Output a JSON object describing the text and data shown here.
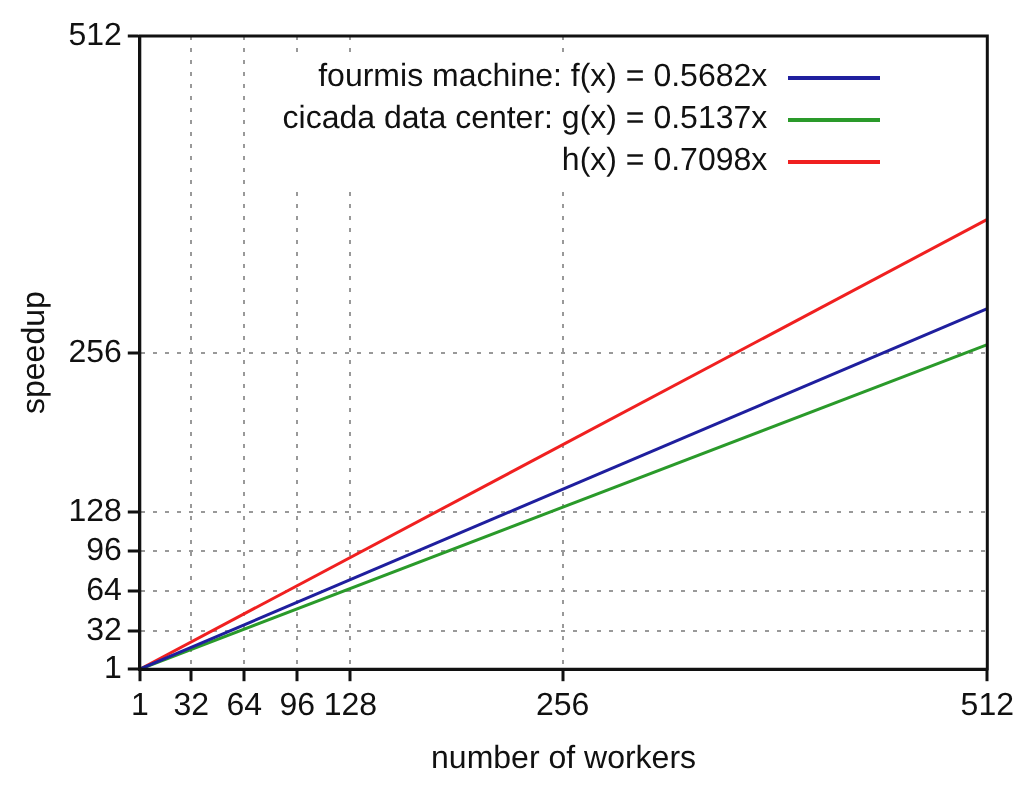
{
  "chart_data": {
    "type": "line",
    "xlabel": "number of workers",
    "ylabel": "speedup",
    "x": [
      1,
      512
    ],
    "series": [
      {
        "name": "fourmis machine: f(x) = 0.5682x",
        "color": "#1f1f9e",
        "values": [
          1,
          292
        ]
      },
      {
        "name": "cicada data center: g(x) = 0.5137x",
        "color": "#2a9a2a",
        "values": [
          1,
          263
        ]
      },
      {
        "name": "h(x) = 0.7098x",
        "color": "#f02020",
        "values": [
          1,
          364
        ]
      }
    ],
    "xlim": [
      1,
      512
    ],
    "xticks": [
      1,
      32,
      64,
      96,
      128,
      256,
      512
    ],
    "ylim": [
      1,
      512
    ],
    "yticks": [
      1,
      32,
      64,
      96,
      128,
      256,
      512
    ],
    "grid": true,
    "legend": "top right",
    "marker": "none",
    "line_style": "solid"
  }
}
